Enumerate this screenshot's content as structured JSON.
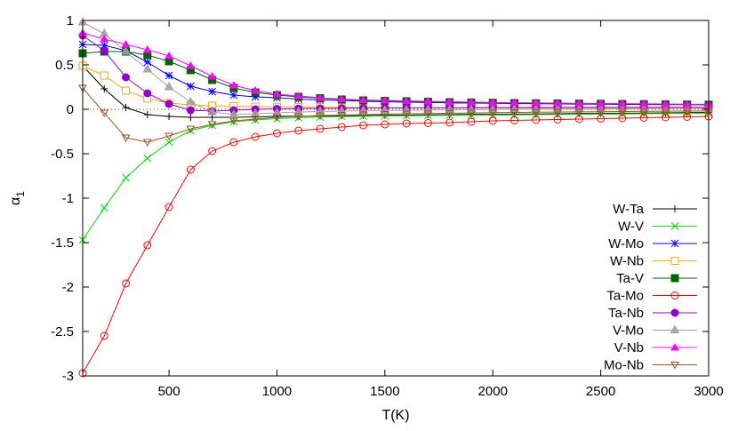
{
  "chart_data": {
    "type": "line",
    "title": "",
    "xlabel": "T(K)",
    "ylabel": "α",
    "ylabel_sub": "1",
    "xlim": [
      100,
      3000
    ],
    "ylim": [
      -3,
      1
    ],
    "xticks": [
      500,
      1000,
      1500,
      2000,
      2500,
      3000
    ],
    "yticks": [
      1,
      0.5,
      0,
      -0.5,
      -1,
      -1.5,
      -2,
      -2.5,
      -3
    ],
    "zero_line": true,
    "legend_position": "bottom-right",
    "x": [
      100,
      200,
      300,
      400,
      500,
      600,
      700,
      800,
      900,
      1000,
      1100,
      1200,
      1300,
      1400,
      1500,
      1600,
      1700,
      1800,
      1900,
      2000,
      2100,
      2200,
      2300,
      2400,
      2500,
      2600,
      2700,
      2800,
      2900,
      3000
    ],
    "series": [
      {
        "name": "W-Ta",
        "color": "#000000",
        "marker": "plus",
        "values": [
          0.49,
          0.23,
          0.02,
          -0.06,
          -0.08,
          -0.09,
          -0.09,
          -0.09,
          -0.085,
          -0.08,
          -0.078,
          -0.075,
          -0.072,
          -0.07,
          -0.067,
          -0.065,
          -0.063,
          -0.06,
          -0.058,
          -0.056,
          -0.054,
          -0.052,
          -0.05,
          -0.048,
          -0.046,
          -0.044,
          -0.042,
          -0.04,
          -0.038,
          -0.036
        ]
      },
      {
        "name": "W-V",
        "color": "#00dd00",
        "marker": "x",
        "values": [
          -1.47,
          -1.11,
          -0.77,
          -0.55,
          -0.37,
          -0.24,
          -0.18,
          -0.14,
          -0.12,
          -0.105,
          -0.095,
          -0.088,
          -0.082,
          -0.078,
          -0.075,
          -0.072,
          -0.07,
          -0.068,
          -0.066,
          -0.064,
          -0.062,
          -0.06,
          -0.058,
          -0.056,
          -0.054,
          -0.052,
          -0.05,
          -0.048,
          -0.046,
          -0.044
        ]
      },
      {
        "name": "W-Mo",
        "color": "#0000ff",
        "marker": "star",
        "values": [
          0.73,
          0.72,
          0.66,
          0.53,
          0.38,
          0.26,
          0.2,
          0.16,
          0.14,
          0.13,
          0.115,
          0.105,
          0.1,
          0.09,
          0.085,
          0.08,
          0.076,
          0.072,
          0.07,
          0.067,
          0.065,
          0.063,
          0.061,
          0.059,
          0.057,
          0.055,
          0.054,
          0.053,
          0.052,
          0.05
        ]
      },
      {
        "name": "W-Nb",
        "color": "#ffa500",
        "marker": "open-square",
        "values": [
          0.49,
          0.38,
          0.21,
          0.12,
          0.07,
          0.05,
          0.04,
          0.035,
          0.03,
          0.028,
          0.026,
          0.024,
          0.022,
          0.02,
          0.019,
          0.018,
          0.017,
          0.016,
          0.015,
          0.015,
          0.014,
          0.014,
          0.013,
          0.013,
          0.012,
          0.012,
          0.011,
          0.011,
          0.011,
          0.01
        ]
      },
      {
        "name": "Ta-V",
        "color": "#006400",
        "marker": "filled-square",
        "values": [
          0.63,
          0.65,
          0.65,
          0.61,
          0.54,
          0.44,
          0.33,
          0.24,
          0.19,
          0.16,
          0.14,
          0.125,
          0.11,
          0.1,
          0.095,
          0.09,
          0.085,
          0.08,
          0.076,
          0.073,
          0.07,
          0.068,
          0.066,
          0.064,
          0.062,
          0.06,
          0.058,
          0.056,
          0.054,
          0.052
        ]
      },
      {
        "name": "Ta-Mo",
        "color": "#ff0000",
        "marker": "open-circle",
        "values": [
          -2.97,
          -2.55,
          -1.96,
          -1.53,
          -1.1,
          -0.68,
          -0.47,
          -0.37,
          -0.31,
          -0.27,
          -0.24,
          -0.22,
          -0.2,
          -0.18,
          -0.17,
          -0.16,
          -0.155,
          -0.15,
          -0.14,
          -0.13,
          -0.125,
          -0.12,
          -0.115,
          -0.11,
          -0.105,
          -0.1,
          -0.095,
          -0.09,
          -0.085,
          -0.08
        ]
      },
      {
        "name": "Ta-Nb",
        "color": "#9400d3",
        "marker": "filled-circle",
        "values": [
          0.83,
          0.66,
          0.36,
          0.18,
          0.06,
          -0.01,
          -0.02,
          -0.01,
          0.0,
          0.005,
          0.008,
          0.01,
          0.012,
          0.014,
          0.015,
          0.016,
          0.017,
          0.018,
          0.019,
          0.02,
          0.02,
          0.021,
          0.021,
          0.022,
          0.022,
          0.022,
          0.023,
          0.023,
          0.023,
          0.023
        ]
      },
      {
        "name": "V-Mo",
        "color": "#a0a0a0",
        "marker": "open-triangle",
        "values": [
          0.98,
          0.85,
          0.65,
          0.45,
          0.25,
          0.08,
          -0.03,
          -0.06,
          -0.05,
          -0.04,
          -0.03,
          -0.025,
          -0.02,
          -0.015,
          -0.012,
          -0.01,
          -0.008,
          -0.006,
          -0.004,
          -0.002,
          0.0,
          0.001,
          0.002,
          0.003,
          0.004,
          0.005,
          0.006,
          0.007,
          0.008,
          0.009
        ]
      },
      {
        "name": "V-Nb",
        "color": "#ff00ff",
        "marker": "filled-triangle",
        "values": [
          0.86,
          0.79,
          0.73,
          0.67,
          0.6,
          0.49,
          0.37,
          0.27,
          0.21,
          0.17,
          0.15,
          0.13,
          0.115,
          0.105,
          0.1,
          0.095,
          0.09,
          0.085,
          0.081,
          0.078,
          0.075,
          0.072,
          0.07,
          0.068,
          0.066,
          0.064,
          0.062,
          0.06,
          0.058,
          0.056
        ]
      },
      {
        "name": "Mo-Nb",
        "color": "#a0522d",
        "marker": "inverted-triangle",
        "values": [
          0.24,
          -0.04,
          -0.32,
          -0.37,
          -0.3,
          -0.22,
          -0.17,
          -0.13,
          -0.11,
          -0.09,
          -0.08,
          -0.07,
          -0.065,
          -0.06,
          -0.055,
          -0.05,
          -0.047,
          -0.044,
          -0.041,
          -0.038,
          -0.035,
          -0.033,
          -0.031,
          -0.029,
          -0.027,
          -0.025,
          -0.023,
          -0.021,
          -0.02,
          -0.019
        ]
      }
    ]
  }
}
